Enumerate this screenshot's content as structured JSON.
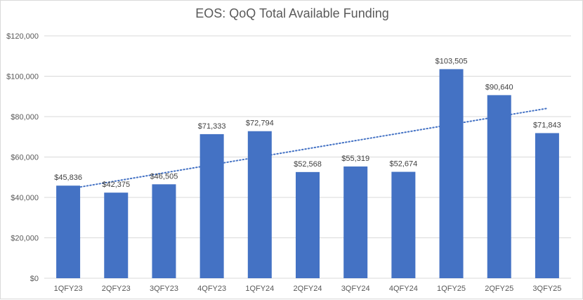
{
  "chart_data": {
    "type": "bar",
    "title": "EOS: QoQ Total Available Funding",
    "categories": [
      "1QFY23",
      "2QFY23",
      "3QFY23",
      "4QFY23",
      "1QFY24",
      "2QFY24",
      "3QFY24",
      "4QFY24",
      "1QFY25",
      "2QFY25",
      "3QFY25"
    ],
    "values": [
      45836,
      42375,
      46505,
      71333,
      72794,
      52568,
      55319,
      52674,
      103505,
      90640,
      71843
    ],
    "data_labels": [
      "$45,836",
      "$42,375",
      "$46,505",
      "$71,333",
      "$72,794",
      "$52,568",
      "$55,319",
      "$52,674",
      "$103,505",
      "$90,640",
      "$71,843"
    ],
    "y_tick_labels": [
      "$0",
      "$20,000",
      "$40,000",
      "$60,000",
      "$80,000",
      "$100,000",
      "$120,000"
    ],
    "y_ticks": [
      0,
      20000,
      40000,
      60000,
      80000,
      100000,
      120000
    ],
    "ylim": [
      0,
      120000
    ],
    "grid": true,
    "trendline": "linear-dotted",
    "colors": {
      "bar": "#4472c4",
      "grid": "#d9d9d9",
      "trend": "#4472c4"
    }
  }
}
